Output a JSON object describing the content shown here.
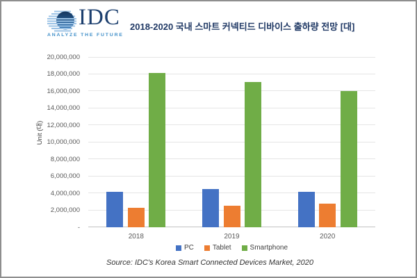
{
  "logo": {
    "brand": "IDC",
    "tagline": "ANALYZE THE FUTURE"
  },
  "chart_data": {
    "type": "bar",
    "title": "2018-2020 국내 스마트 커넥티드 디바이스 출하량 전망 [대]",
    "title_color": "#1f3864",
    "categories": [
      "2018",
      "2019",
      "2020"
    ],
    "series": [
      {
        "name": "PC",
        "color": "#4472C4",
        "values": [
          4200000,
          4500000,
          4200000
        ]
      },
      {
        "name": "Tablet",
        "color": "#ED7D31",
        "values": [
          2300000,
          2500000,
          2800000
        ]
      },
      {
        "name": "Smartphone",
        "color": "#70AD47",
        "values": [
          18100000,
          17100000,
          16000000
        ]
      }
    ],
    "xlabel": "",
    "ylabel": "Unit (대)",
    "ylim": [
      0,
      20000000
    ],
    "y_ticks": [
      {
        "value": 0,
        "label": "-"
      },
      {
        "value": 2000000,
        "label": "2,000,000"
      },
      {
        "value": 4000000,
        "label": "4,000,000"
      },
      {
        "value": 6000000,
        "label": "6,000,000"
      },
      {
        "value": 8000000,
        "label": "8,000,000"
      },
      {
        "value": 10000000,
        "label": "10,000,000"
      },
      {
        "value": 12000000,
        "label": "12,000,000"
      },
      {
        "value": 14000000,
        "label": "14,000,000"
      },
      {
        "value": 16000000,
        "label": "16,000,000"
      },
      {
        "value": 18000000,
        "label": "18,000,000"
      },
      {
        "value": 20000000,
        "label": "20,000,000"
      }
    ],
    "grid": true,
    "legend_position": "bottom",
    "source": "Source: IDC's Korea Smart Connected Devices Market, 2020"
  }
}
